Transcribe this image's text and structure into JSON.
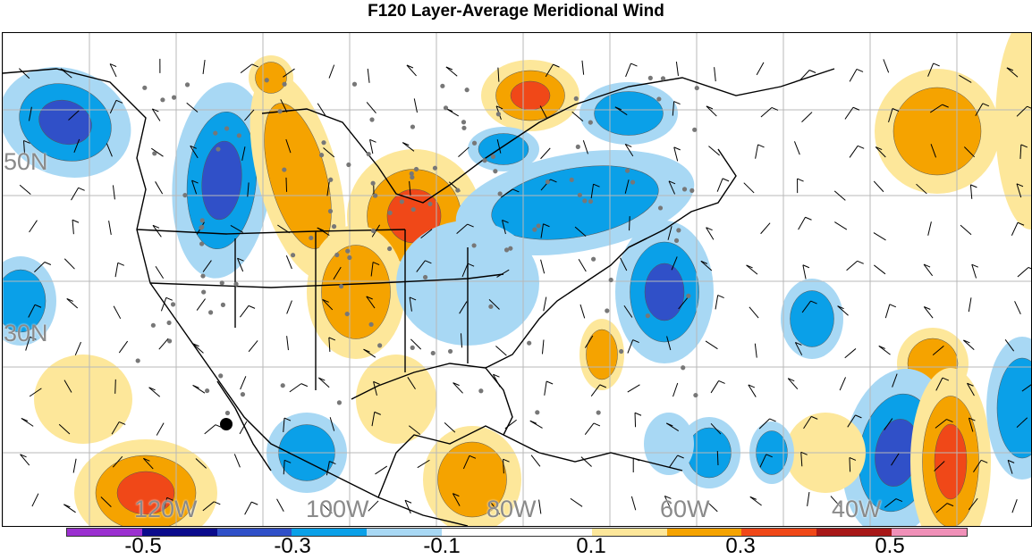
{
  "title": "F120 Layer-Average Meridional Wind",
  "lat_labels": [
    {
      "text": "50N"
    },
    {
      "text": "30N"
    }
  ],
  "lon_labels": [
    {
      "text": "120W"
    },
    {
      "text": "100W"
    },
    {
      "text": "80W"
    },
    {
      "text": "60W"
    },
    {
      "text": "40W"
    }
  ],
  "colorbar": {
    "colors": [
      "#9b30d0",
      "#0b0b8c",
      "#3050c8",
      "#0aa0e8",
      "#a8d8f4",
      "#ffffff",
      "#ffffff",
      "#fde79a",
      "#f5a300",
      "#f04818",
      "#a81818",
      "#f090b8"
    ],
    "labels": [
      "-0.5",
      "-0.3",
      "-0.1",
      "0.1",
      "0.3",
      "0.5"
    ]
  },
  "legend_colors": {
    "strong_negative": "#3050c8",
    "negative": "#0aa0e8",
    "weak_negative": "#a8d8f4",
    "weak_positive": "#fde79a",
    "positive": "#f5a300",
    "strong_positive": "#f04818"
  }
}
